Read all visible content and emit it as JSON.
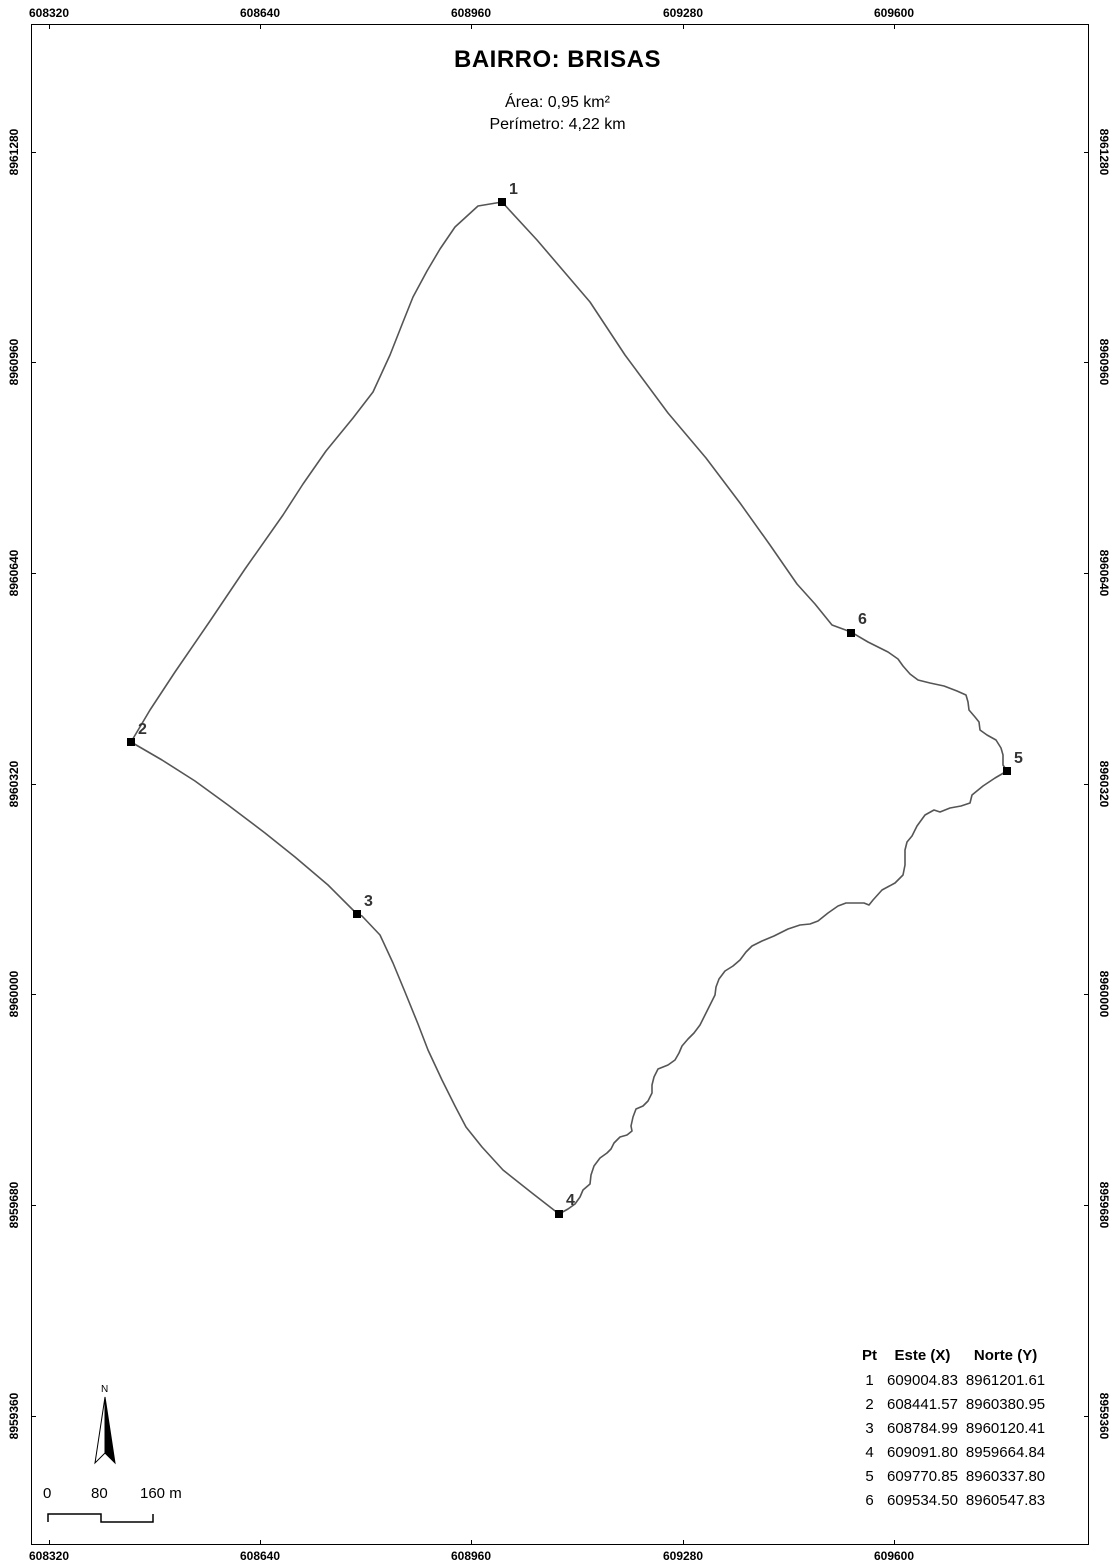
{
  "map": {
    "title": "BAIRRO: BRISAS",
    "area": "Área: 0,95 km²",
    "perimeter": "Perímetro: 4,22 km"
  },
  "grid": {
    "x_labels": [
      "608320",
      "608640",
      "608960",
      "609280",
      "609600"
    ],
    "y_labels": [
      "8961280",
      "8960960",
      "8960640",
      "8960320",
      "8960000",
      "8959680",
      "8959360"
    ]
  },
  "points": [
    {
      "pt": "1",
      "este": "609004.83",
      "norte": "8961201.61"
    },
    {
      "pt": "2",
      "este": "608441.57",
      "norte": "8960380.95"
    },
    {
      "pt": "3",
      "este": "608784.99",
      "norte": "8960120.41"
    },
    {
      "pt": "4",
      "este": "609091.80",
      "norte": "8959664.84"
    },
    {
      "pt": "5",
      "este": "609770.85",
      "norte": "8960337.80"
    },
    {
      "pt": "6",
      "este": "609534.50",
      "norte": "8960547.83"
    }
  ],
  "table": {
    "headers": [
      "Pt",
      "Este (X)",
      "Norte (Y)"
    ]
  },
  "scale_bar": {
    "labels": [
      "0",
      "80",
      "160 m"
    ]
  },
  "north_arrow": {
    "label": "N",
    "icon": "north-arrow-icon"
  },
  "colors": {
    "boundary": "#555555",
    "frame": "#000000"
  }
}
